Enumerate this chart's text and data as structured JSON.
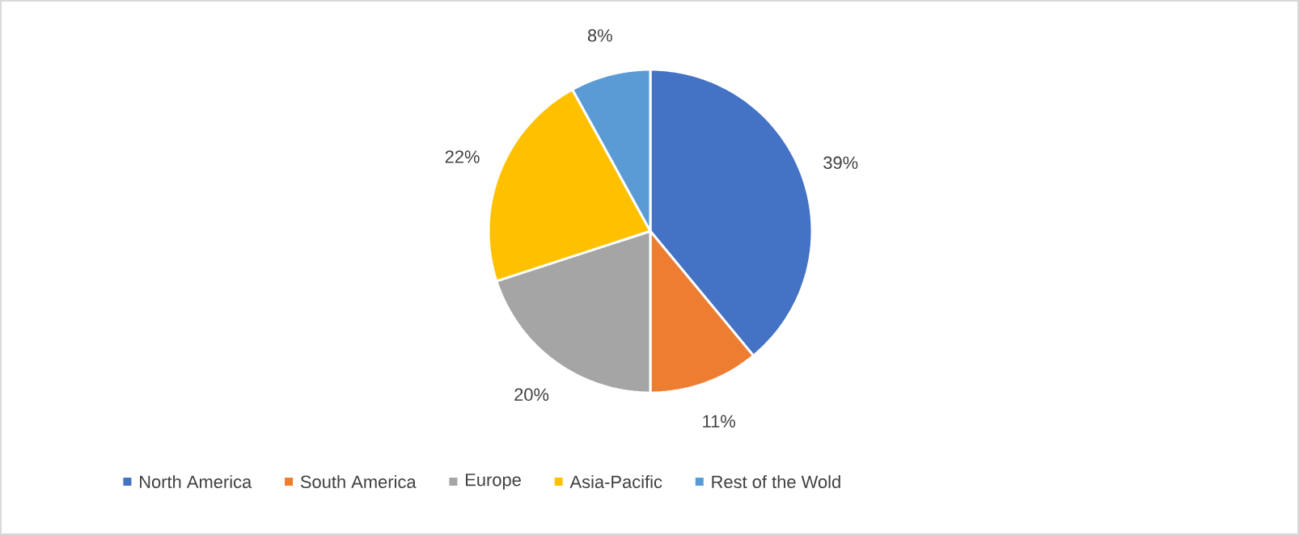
{
  "chart_data": {
    "type": "pie",
    "categories": [
      "North America",
      "South America",
      "Europe",
      "Asia-Pacific",
      "Rest of the Wold"
    ],
    "values": [
      39,
      11,
      20,
      22,
      8
    ],
    "colors": [
      "#4472c4",
      "#ed7d31",
      "#a5a5a5",
      "#ffc000",
      "#5b9bd5"
    ],
    "value_labels": [
      "39%",
      "11%",
      "20%",
      "22%",
      "8%"
    ],
    "legend": "bottom"
  }
}
